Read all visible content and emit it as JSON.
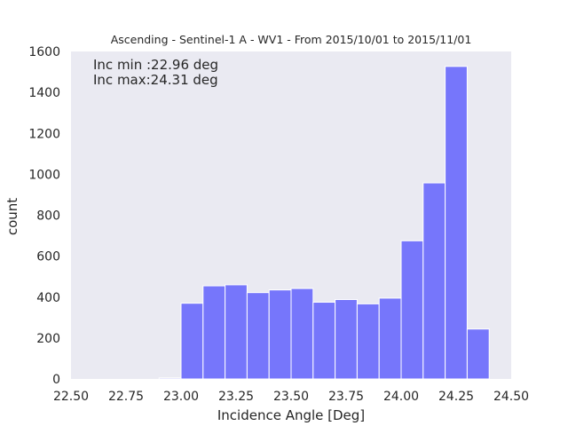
{
  "chart_data": {
    "type": "bar",
    "subtype": "histogram",
    "title": "Ascending - Sentinel-1 A - WV1 - From 2015/10/01 to 2015/11/01",
    "xlabel": "Incidence Angle [Deg]",
    "ylabel": "count",
    "xlim": [
      22.5,
      24.5
    ],
    "ylim": [
      0,
      1600
    ],
    "xticks": [
      "22.50",
      "22.75",
      "23.00",
      "23.25",
      "23.50",
      "23.75",
      "24.00",
      "24.25",
      "24.50"
    ],
    "yticks": [
      "0",
      "200",
      "400",
      "600",
      "800",
      "1000",
      "1200",
      "1400",
      "1600"
    ],
    "grid": false,
    "background": "#eaeaf2",
    "bar_color": "#7676fb",
    "annotations": [
      "Inc min :22.96 deg",
      "Inc max:24.31 deg"
    ],
    "bins": [
      {
        "x0": 22.9,
        "x1": 23.0,
        "value": 5
      },
      {
        "x0": 23.0,
        "x1": 23.1,
        "value": 370
      },
      {
        "x0": 23.1,
        "x1": 23.2,
        "value": 455
      },
      {
        "x0": 23.2,
        "x1": 23.3,
        "value": 460
      },
      {
        "x0": 23.3,
        "x1": 23.4,
        "value": 422
      },
      {
        "x0": 23.4,
        "x1": 23.5,
        "value": 435
      },
      {
        "x0": 23.5,
        "x1": 23.6,
        "value": 442
      },
      {
        "x0": 23.6,
        "x1": 23.7,
        "value": 375
      },
      {
        "x0": 23.7,
        "x1": 23.8,
        "value": 388
      },
      {
        "x0": 23.8,
        "x1": 23.9,
        "value": 367
      },
      {
        "x0": 23.9,
        "x1": 24.0,
        "value": 395
      },
      {
        "x0": 24.0,
        "x1": 24.1,
        "value": 675
      },
      {
        "x0": 24.1,
        "x1": 24.2,
        "value": 958
      },
      {
        "x0": 24.2,
        "x1": 24.3,
        "value": 1527
      },
      {
        "x0": 24.3,
        "x1": 24.4,
        "value": 244
      }
    ]
  }
}
